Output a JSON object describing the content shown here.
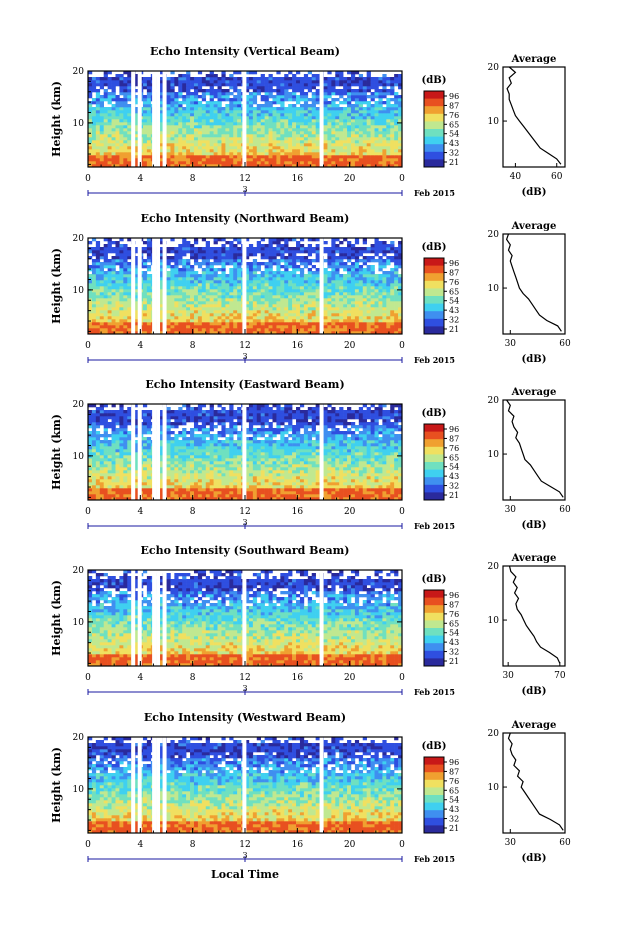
{
  "colors": {
    "scale": [
      "#2a2a9c",
      "#2f4fe0",
      "#3f8ff0",
      "#3fd0f0",
      "#6fe0c0",
      "#c0e890",
      "#f0e060",
      "#f0a030",
      "#e85020",
      "#c81818"
    ],
    "gap": "#ffffff",
    "axis": "#000000",
    "blueline": "#1a1aa0"
  },
  "footer": {
    "date": "Feb 2015",
    "xlabel": "Local Time"
  },
  "chart_data": [
    {
      "type": "heatmap",
      "title": "Echo Intensity (Vertical Beam)",
      "ylabel": "Height (km)",
      "xticks": [
        "0",
        "4",
        "8",
        "12",
        "16",
        "20",
        "0"
      ],
      "yticks": [
        "10",
        "20"
      ],
      "ylim": [
        1.5,
        20
      ],
      "xlim": [
        0,
        24
      ],
      "day_label": "3",
      "date_label": "Feb 2015",
      "colorbar": {
        "unit": "(dB)",
        "ticks": [
          "96",
          "87",
          "76",
          "65",
          "54",
          "43",
          "32",
          "21"
        ]
      },
      "data_gaps_hours": [
        3.3,
        3.8,
        4.9,
        5.2,
        5.7,
        11.8,
        17.7
      ],
      "profile": {
        "title": "Average",
        "xlabel": "(dB)",
        "xticks": [
          "40",
          "60"
        ],
        "xlim": [
          34,
          64
        ],
        "yticks": [
          "10",
          "20"
        ],
        "height_km": [
          2,
          3,
          4,
          5,
          6,
          7,
          8,
          9,
          10,
          11,
          12,
          13,
          14,
          15,
          16,
          17,
          18,
          19,
          20
        ],
        "values": [
          62,
          60,
          56,
          52,
          50,
          48,
          46,
          44,
          42,
          40,
          39,
          38,
          37,
          37,
          36,
          38,
          37,
          40,
          37
        ]
      }
    },
    {
      "type": "heatmap",
      "title": "Echo Intensity (Northward Beam)",
      "ylabel": "Height (km)",
      "xticks": [
        "0",
        "4",
        "8",
        "12",
        "16",
        "20",
        "0"
      ],
      "yticks": [
        "10",
        "20"
      ],
      "ylim": [
        1.5,
        20
      ],
      "xlim": [
        0,
        24
      ],
      "day_label": "3",
      "date_label": "Feb 2015",
      "colorbar": {
        "unit": "(dB)",
        "ticks": [
          "96",
          "87",
          "76",
          "65",
          "54",
          "43",
          "32",
          "21"
        ]
      },
      "data_gaps_hours": [
        3.3,
        3.8,
        4.9,
        5.2,
        5.7,
        11.8,
        17.7
      ],
      "profile": {
        "title": "Average",
        "xlabel": "(dB)",
        "xticks": [
          "30",
          "60"
        ],
        "xlim": [
          26,
          60
        ],
        "yticks": [
          "10",
          "20"
        ],
        "height_km": [
          2,
          3,
          4,
          5,
          6,
          7,
          8,
          9,
          10,
          11,
          12,
          13,
          14,
          15,
          16,
          17,
          18,
          19,
          20
        ],
        "values": [
          58,
          56,
          50,
          46,
          44,
          42,
          40,
          37,
          35,
          34,
          33,
          32,
          31,
          30,
          31,
          29,
          30,
          28,
          29
        ]
      }
    },
    {
      "type": "heatmap",
      "title": "Echo Intensity (Eastward Beam)",
      "ylabel": "Height (km)",
      "xticks": [
        "0",
        "4",
        "8",
        "12",
        "16",
        "20",
        "0"
      ],
      "yticks": [
        "10",
        "20"
      ],
      "ylim": [
        1.5,
        20
      ],
      "xlim": [
        0,
        24
      ],
      "day_label": "3",
      "date_label": "Feb 2015",
      "colorbar": {
        "unit": "(dB)",
        "ticks": [
          "96",
          "87",
          "76",
          "65",
          "54",
          "43",
          "32",
          "21"
        ]
      },
      "data_gaps_hours": [
        3.3,
        3.8,
        4.9,
        5.2,
        5.7,
        11.8,
        17.7
      ],
      "profile": {
        "title": "Average",
        "xlabel": "(dB)",
        "xticks": [
          "30",
          "60"
        ],
        "xlim": [
          26,
          60
        ],
        "yticks": [
          "10",
          "20"
        ],
        "height_km": [
          2,
          3,
          4,
          5,
          6,
          7,
          8,
          9,
          10,
          11,
          12,
          13,
          14,
          15,
          16,
          17,
          18,
          19,
          20
        ],
        "values": [
          59,
          57,
          52,
          47,
          45,
          43,
          41,
          38,
          37,
          36,
          35,
          33,
          34,
          32,
          31,
          32,
          29,
          30,
          28
        ]
      }
    },
    {
      "type": "heatmap",
      "title": "Echo Intensity (Southward Beam)",
      "ylabel": "Height (km)",
      "xticks": [
        "0",
        "4",
        "8",
        "12",
        "16",
        "20",
        "0"
      ],
      "yticks": [
        "10",
        "20"
      ],
      "ylim": [
        1.5,
        20
      ],
      "xlim": [
        0,
        24
      ],
      "day_label": "3",
      "date_label": "Feb 2015",
      "colorbar": {
        "unit": "(dB)",
        "ticks": [
          "96",
          "87",
          "76",
          "65",
          "54",
          "43",
          "32",
          "21"
        ]
      },
      "data_gaps_hours": [
        3.3,
        3.8,
        4.9,
        5.2,
        5.7,
        11.8,
        17.7
      ],
      "profile": {
        "title": "Average",
        "xlabel": "(dB)",
        "xticks": [
          "30",
          "70"
        ],
        "xlim": [
          26,
          74
        ],
        "yticks": [
          "10",
          "20"
        ],
        "height_km": [
          2,
          3,
          4,
          5,
          6,
          7,
          8,
          9,
          10,
          11,
          12,
          13,
          14,
          15,
          16,
          17,
          18,
          19,
          20
        ],
        "values": [
          70,
          68,
          62,
          55,
          52,
          50,
          47,
          44,
          42,
          40,
          37,
          36,
          38,
          35,
          37,
          34,
          36,
          32,
          31
        ]
      }
    },
    {
      "type": "heatmap",
      "title": "Echo Intensity (Westward Beam)",
      "ylabel": "Height (km)",
      "xticks": [
        "0",
        "4",
        "8",
        "12",
        "16",
        "20",
        "0"
      ],
      "yticks": [
        "10",
        "20"
      ],
      "ylim": [
        1.5,
        20
      ],
      "xlim": [
        0,
        24
      ],
      "day_label": "3",
      "date_label": "Feb 2015",
      "colorbar": {
        "unit": "(dB)",
        "ticks": [
          "96",
          "87",
          "76",
          "65",
          "54",
          "43",
          "32",
          "21"
        ]
      },
      "data_gaps_hours": [
        3.3,
        3.8,
        4.9,
        5.2,
        5.7,
        11.8,
        17.7
      ],
      "profile": {
        "title": "Average",
        "xlabel": "(dB)",
        "xticks": [
          "30",
          "60"
        ],
        "xlim": [
          26,
          60
        ],
        "yticks": [
          "10",
          "20"
        ],
        "height_km": [
          2,
          3,
          4,
          5,
          6,
          7,
          8,
          9,
          10,
          11,
          12,
          13,
          14,
          15,
          16,
          17,
          18,
          19,
          20
        ],
        "values": [
          59,
          57,
          52,
          46,
          44,
          42,
          40,
          38,
          36,
          37,
          34,
          35,
          32,
          33,
          31,
          30,
          31,
          29,
          30
        ]
      }
    }
  ]
}
